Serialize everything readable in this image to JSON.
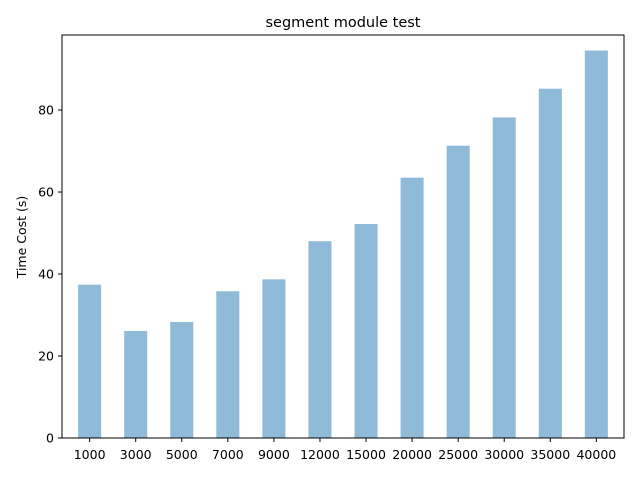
{
  "chart_data": {
    "type": "bar",
    "title": "segment module test",
    "xlabel": "",
    "ylabel": "Time Cost (s)",
    "categories": [
      "1000",
      "3000",
      "5000",
      "7000",
      "9000",
      "12000",
      "15000",
      "20000",
      "25000",
      "30000",
      "35000",
      "40000"
    ],
    "values": [
      37.4,
      26.1,
      28.3,
      35.8,
      38.7,
      48.0,
      52.2,
      63.5,
      71.3,
      78.2,
      85.2,
      94.5
    ],
    "ylim": [
      0,
      98.3
    ],
    "yticks": [
      0,
      20,
      40,
      60,
      80
    ],
    "ytick_labels": [
      "0",
      "20",
      "40",
      "60",
      "80"
    ],
    "bar_color": "#8fbad8",
    "grid": false,
    "legend": "none"
  }
}
